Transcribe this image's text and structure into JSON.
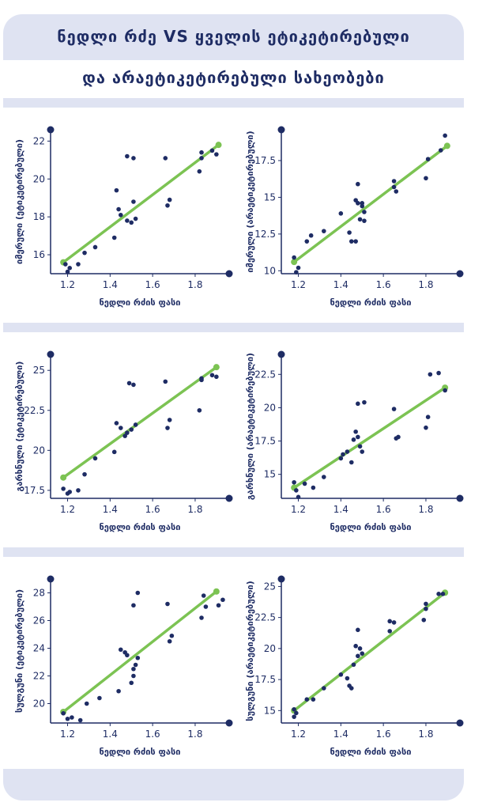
{
  "title_line1": "ნედლი რძე VS ყველის ეტიკეტირებული",
  "title_line2": "და არაეტიკეტირებული სახეობები",
  "colors": {
    "navy": "#1e2c64",
    "green": "#7cc353",
    "panel": "#dfe3f2"
  },
  "chart_data": [
    {
      "type": "scatter",
      "xlabel": "ნედლი რძის ფასი",
      "ylabel": "იმერული (ეტიკეტირებული)",
      "xticks": [
        1.2,
        1.4,
        1.6,
        1.8
      ],
      "yticks": [
        16,
        18,
        20,
        22
      ],
      "xlim": [
        1.12,
        1.96
      ],
      "ylim": [
        15.0,
        22.6
      ],
      "fit": [
        [
          1.18,
          15.6
        ],
        [
          1.91,
          21.8
        ]
      ],
      "points": [
        [
          1.19,
          15.5
        ],
        [
          1.2,
          15.1
        ],
        [
          1.21,
          15.3
        ],
        [
          1.25,
          15.5
        ],
        [
          1.28,
          16.1
        ],
        [
          1.33,
          16.4
        ],
        [
          1.42,
          16.9
        ],
        [
          1.43,
          19.4
        ],
        [
          1.44,
          18.4
        ],
        [
          1.45,
          18.1
        ],
        [
          1.48,
          17.8
        ],
        [
          1.48,
          21.2
        ],
        [
          1.5,
          17.7
        ],
        [
          1.51,
          18.8
        ],
        [
          1.51,
          21.1
        ],
        [
          1.52,
          17.9
        ],
        [
          1.66,
          21.1
        ],
        [
          1.67,
          18.6
        ],
        [
          1.68,
          18.9
        ],
        [
          1.82,
          20.4
        ],
        [
          1.83,
          21.1
        ],
        [
          1.83,
          21.4
        ],
        [
          1.88,
          21.5
        ],
        [
          1.9,
          21.3
        ]
      ]
    },
    {
      "type": "scatter",
      "xlabel": "ნედლი რძის ფასი",
      "ylabel": "იმერული (არაეტიკეტირებული)",
      "xticks": [
        1.2,
        1.4,
        1.6,
        1.8
      ],
      "yticks": [
        10.0,
        12.5,
        15.0,
        17.5
      ],
      "xlim": [
        1.12,
        1.96
      ],
      "ylim": [
        9.8,
        19.6
      ],
      "fit": [
        [
          1.18,
          10.6
        ],
        [
          1.9,
          18.5
        ]
      ],
      "points": [
        [
          1.18,
          10.9
        ],
        [
          1.19,
          9.9
        ],
        [
          1.2,
          10.2
        ],
        [
          1.24,
          12.0
        ],
        [
          1.26,
          12.4
        ],
        [
          1.32,
          12.7
        ],
        [
          1.4,
          13.9
        ],
        [
          1.44,
          12.6
        ],
        [
          1.45,
          12.0
        ],
        [
          1.47,
          12.0
        ],
        [
          1.47,
          14.8
        ],
        [
          1.48,
          15.9
        ],
        [
          1.48,
          14.6
        ],
        [
          1.49,
          13.5
        ],
        [
          1.5,
          14.4
        ],
        [
          1.5,
          14.6
        ],
        [
          1.51,
          13.4
        ],
        [
          1.51,
          14.0
        ],
        [
          1.65,
          15.7
        ],
        [
          1.65,
          16.1
        ],
        [
          1.66,
          15.4
        ],
        [
          1.8,
          16.3
        ],
        [
          1.81,
          17.6
        ],
        [
          1.87,
          18.2
        ],
        [
          1.89,
          19.2
        ]
      ]
    },
    {
      "type": "scatter",
      "xlabel": "ნედლი რძის ფასი",
      "ylabel": "გარხნული (ეტიკეტირებული)",
      "xticks": [
        1.2,
        1.4,
        1.6,
        1.8
      ],
      "yticks": [
        17.5,
        20.0,
        22.5,
        25.0
      ],
      "xlim": [
        1.12,
        1.96
      ],
      "ylim": [
        17.0,
        26.0
      ],
      "fit": [
        [
          1.18,
          18.3
        ],
        [
          1.9,
          25.2
        ]
      ],
      "points": [
        [
          1.18,
          17.6
        ],
        [
          1.2,
          17.3
        ],
        [
          1.21,
          17.4
        ],
        [
          1.25,
          17.5
        ],
        [
          1.28,
          18.5
        ],
        [
          1.33,
          19.5
        ],
        [
          1.42,
          19.9
        ],
        [
          1.43,
          21.7
        ],
        [
          1.45,
          21.4
        ],
        [
          1.47,
          20.9
        ],
        [
          1.48,
          21.1
        ],
        [
          1.49,
          24.2
        ],
        [
          1.5,
          21.3
        ],
        [
          1.51,
          24.1
        ],
        [
          1.52,
          21.6
        ],
        [
          1.66,
          24.3
        ],
        [
          1.67,
          21.4
        ],
        [
          1.68,
          21.9
        ],
        [
          1.82,
          22.5
        ],
        [
          1.83,
          24.5
        ],
        [
          1.83,
          24.4
        ],
        [
          1.88,
          24.7
        ],
        [
          1.9,
          24.6
        ]
      ]
    },
    {
      "type": "scatter",
      "xlabel": "ნედლი რძის ფასი",
      "ylabel": "გარხნული (არაეტიკეტირებული)",
      "xticks": [
        1.2,
        1.4,
        1.6,
        1.8
      ],
      "yticks": [
        15.0,
        17.5,
        20.0,
        22.5
      ],
      "xlim": [
        1.12,
        1.96
      ],
      "ylim": [
        13.2,
        24.0
      ],
      "fit": [
        [
          1.18,
          14.0
        ],
        [
          1.89,
          21.5
        ]
      ],
      "points": [
        [
          1.18,
          14.4
        ],
        [
          1.19,
          13.8
        ],
        [
          1.2,
          13.3
        ],
        [
          1.23,
          14.3
        ],
        [
          1.27,
          14.0
        ],
        [
          1.32,
          14.8
        ],
        [
          1.4,
          16.2
        ],
        [
          1.41,
          16.5
        ],
        [
          1.43,
          16.7
        ],
        [
          1.45,
          15.9
        ],
        [
          1.46,
          17.6
        ],
        [
          1.47,
          18.2
        ],
        [
          1.48,
          17.8
        ],
        [
          1.48,
          20.3
        ],
        [
          1.49,
          17.1
        ],
        [
          1.5,
          16.7
        ],
        [
          1.51,
          20.4
        ],
        [
          1.65,
          19.9
        ],
        [
          1.66,
          17.7
        ],
        [
          1.67,
          17.8
        ],
        [
          1.8,
          18.5
        ],
        [
          1.81,
          19.3
        ],
        [
          1.82,
          22.5
        ],
        [
          1.86,
          22.6
        ],
        [
          1.89,
          21.3
        ]
      ]
    },
    {
      "type": "scatter",
      "xlabel": "ნედლი რძის ფასი",
      "ylabel": "სულგუნი (ეტიკეტირებული)",
      "xticks": [
        1.2,
        1.4,
        1.6,
        1.8
      ],
      "yticks": [
        20,
        22,
        24,
        26,
        28
      ],
      "xlim": [
        1.12,
        1.96
      ],
      "ylim": [
        18.6,
        29.0
      ],
      "fit": [
        [
          1.18,
          19.4
        ],
        [
          1.9,
          28.1
        ]
      ],
      "points": [
        [
          1.18,
          19.3
        ],
        [
          1.2,
          18.9
        ],
        [
          1.22,
          19.0
        ],
        [
          1.26,
          18.8
        ],
        [
          1.29,
          20.0
        ],
        [
          1.35,
          20.4
        ],
        [
          1.44,
          20.9
        ],
        [
          1.45,
          23.9
        ],
        [
          1.47,
          23.7
        ],
        [
          1.48,
          23.5
        ],
        [
          1.5,
          21.5
        ],
        [
          1.51,
          22.0
        ],
        [
          1.51,
          22.5
        ],
        [
          1.51,
          27.1
        ],
        [
          1.52,
          22.8
        ],
        [
          1.53,
          23.3
        ],
        [
          1.53,
          28.0
        ],
        [
          1.67,
          27.2
        ],
        [
          1.68,
          24.5
        ],
        [
          1.69,
          24.9
        ],
        [
          1.83,
          26.2
        ],
        [
          1.84,
          27.8
        ],
        [
          1.85,
          27.0
        ],
        [
          1.91,
          27.1
        ],
        [
          1.93,
          27.5
        ]
      ]
    },
    {
      "type": "scatter",
      "xlabel": "ნედლი რძის ფასი",
      "ylabel": "სულგუნი (არაეტიკეტირებული)",
      "xticks": [
        1.2,
        1.4,
        1.6,
        1.8
      ],
      "yticks": [
        15.0,
        17.5,
        20.0,
        22.5,
        25.0
      ],
      "xlim": [
        1.12,
        1.96
      ],
      "ylim": [
        14.0,
        25.6
      ],
      "fit": [
        [
          1.18,
          15.0
        ],
        [
          1.89,
          24.5
        ]
      ],
      "points": [
        [
          1.18,
          15.1
        ],
        [
          1.18,
          14.5
        ],
        [
          1.19,
          14.8
        ],
        [
          1.24,
          15.9
        ],
        [
          1.27,
          15.9
        ],
        [
          1.32,
          16.8
        ],
        [
          1.4,
          17.9
        ],
        [
          1.43,
          17.6
        ],
        [
          1.44,
          17.0
        ],
        [
          1.45,
          16.8
        ],
        [
          1.46,
          18.7
        ],
        [
          1.47,
          20.2
        ],
        [
          1.48,
          21.5
        ],
        [
          1.48,
          19.4
        ],
        [
          1.49,
          20.0
        ],
        [
          1.5,
          19.6
        ],
        [
          1.63,
          21.4
        ],
        [
          1.63,
          22.2
        ],
        [
          1.65,
          22.1
        ],
        [
          1.79,
          22.3
        ],
        [
          1.8,
          23.2
        ],
        [
          1.8,
          23.6
        ],
        [
          1.86,
          24.4
        ],
        [
          1.88,
          24.4
        ]
      ]
    }
  ]
}
